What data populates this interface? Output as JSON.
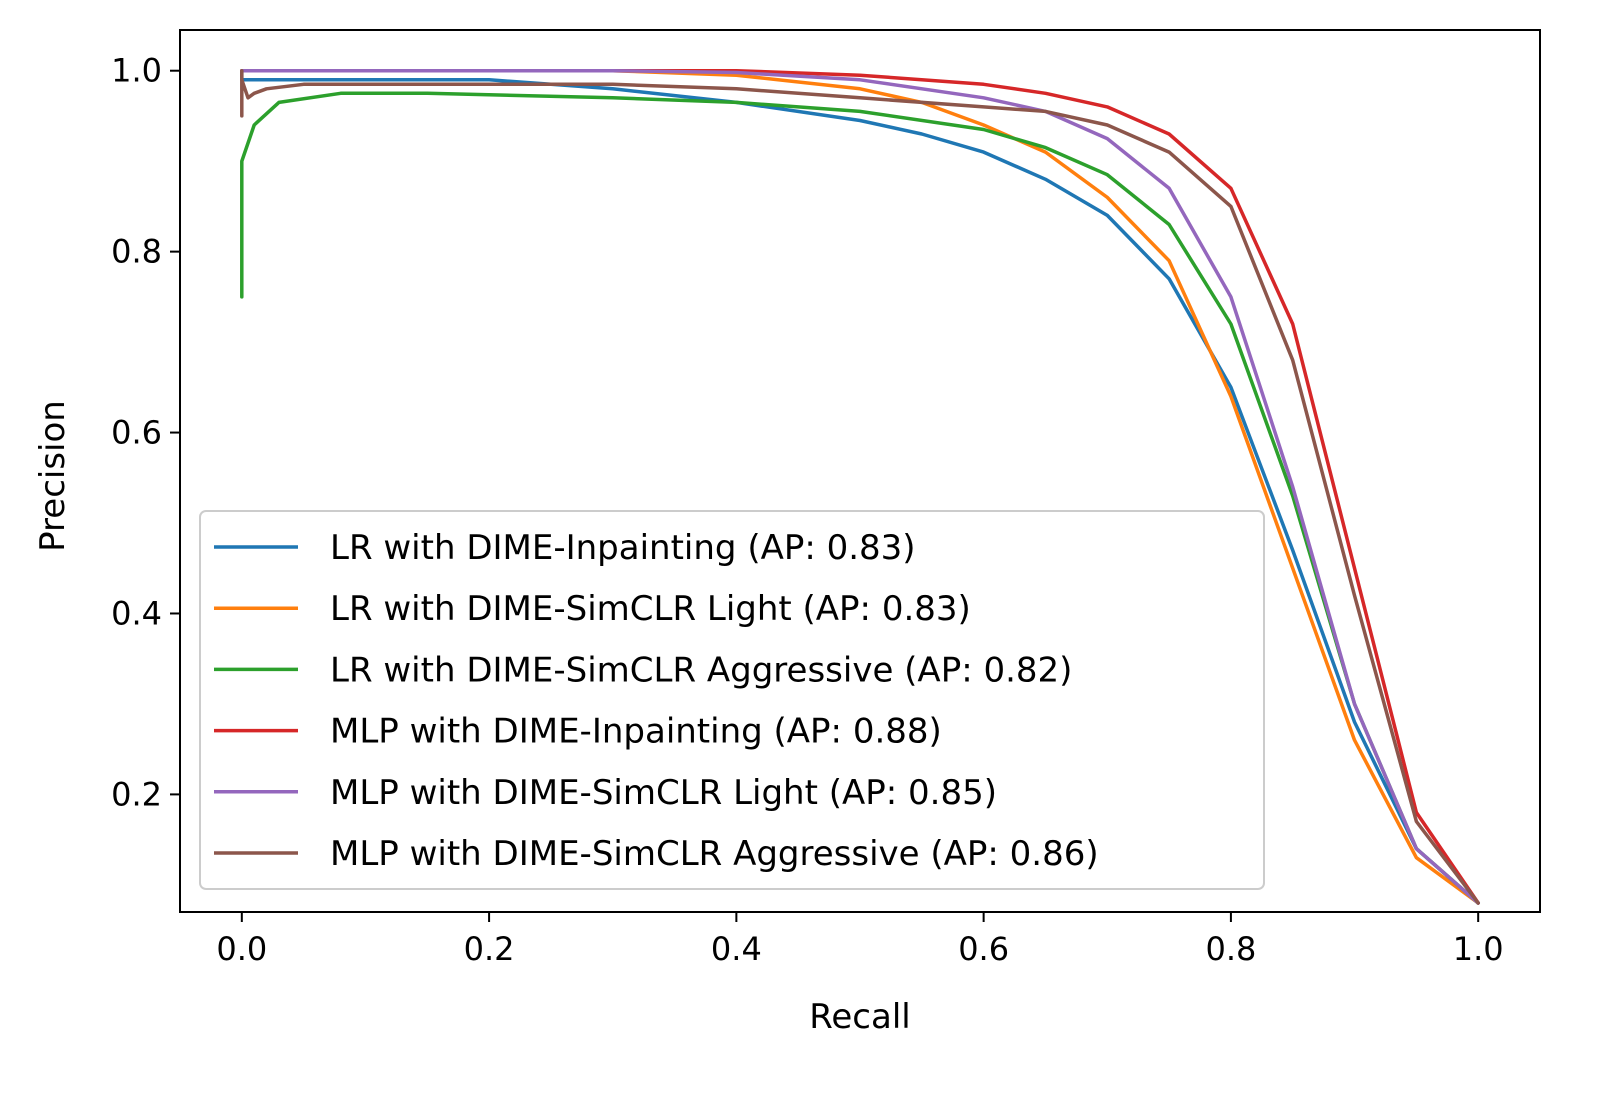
{
  "chart_data": {
    "type": "line",
    "title": "",
    "xlabel": "Recall",
    "ylabel": "Precision",
    "xlim": [
      -0.05,
      1.05
    ],
    "ylim": [
      0.07,
      1.045
    ],
    "xticks": [
      0.0,
      0.2,
      0.4,
      0.6,
      0.8,
      1.0
    ],
    "xtick_labels": [
      "0.0",
      "0.2",
      "0.4",
      "0.6",
      "0.8",
      "1.0"
    ],
    "yticks": [
      0.2,
      0.4,
      0.6,
      0.8,
      1.0
    ],
    "ytick_labels": [
      "0.2",
      "0.4",
      "0.6",
      "0.8",
      "1.0"
    ],
    "grid": false,
    "legend_position": "lower-left",
    "series": [
      {
        "name": "LR with DIME-Inpainting (AP: 0.83)",
        "color": "#1f77b4",
        "x": [
          0.0,
          0.0,
          0.02,
          0.1,
          0.2,
          0.3,
          0.4,
          0.5,
          0.55,
          0.6,
          0.65,
          0.7,
          0.75,
          0.8,
          0.85,
          0.9,
          0.95,
          1.0
        ],
        "y": [
          1.0,
          0.99,
          0.99,
          0.99,
          0.99,
          0.98,
          0.965,
          0.945,
          0.93,
          0.91,
          0.88,
          0.84,
          0.77,
          0.65,
          0.47,
          0.28,
          0.14,
          0.08
        ]
      },
      {
        "name": "LR with DIME-SimCLR Light (AP: 0.83)",
        "color": "#ff7f0e",
        "x": [
          0.0,
          0.0,
          0.1,
          0.2,
          0.3,
          0.4,
          0.5,
          0.55,
          0.6,
          0.65,
          0.7,
          0.75,
          0.8,
          0.85,
          0.9,
          0.95,
          1.0
        ],
        "y": [
          1.0,
          1.0,
          1.0,
          1.0,
          1.0,
          0.995,
          0.98,
          0.965,
          0.94,
          0.91,
          0.86,
          0.79,
          0.64,
          0.45,
          0.26,
          0.13,
          0.08
        ]
      },
      {
        "name": "LR with DIME-SimCLR Aggressive (AP: 0.82)",
        "color": "#2ca02c",
        "x": [
          0.0,
          0.0,
          0.0,
          0.01,
          0.03,
          0.08,
          0.15,
          0.3,
          0.4,
          0.5,
          0.6,
          0.65,
          0.7,
          0.75,
          0.8,
          0.85,
          0.9,
          0.95,
          1.0
        ],
        "y": [
          0.75,
          0.85,
          0.9,
          0.94,
          0.965,
          0.975,
          0.975,
          0.97,
          0.965,
          0.955,
          0.935,
          0.915,
          0.885,
          0.83,
          0.72,
          0.53,
          0.3,
          0.14,
          0.08
        ]
      },
      {
        "name": "MLP with DIME-Inpainting (AP: 0.88)",
        "color": "#d62728",
        "x": [
          0.0,
          0.0,
          0.1,
          0.2,
          0.3,
          0.4,
          0.5,
          0.6,
          0.65,
          0.7,
          0.75,
          0.8,
          0.85,
          0.9,
          0.95,
          1.0
        ],
        "y": [
          1.0,
          1.0,
          1.0,
          1.0,
          1.0,
          1.0,
          0.995,
          0.985,
          0.975,
          0.96,
          0.93,
          0.87,
          0.72,
          0.45,
          0.18,
          0.08
        ]
      },
      {
        "name": "MLP with DIME-SimCLR Light (AP: 0.85)",
        "color": "#9467bd",
        "x": [
          0.0,
          0.0,
          0.1,
          0.2,
          0.3,
          0.4,
          0.5,
          0.6,
          0.65,
          0.7,
          0.75,
          0.8,
          0.85,
          0.9,
          0.95,
          1.0
        ],
        "y": [
          1.0,
          1.0,
          1.0,
          1.0,
          1.0,
          0.998,
          0.99,
          0.97,
          0.955,
          0.925,
          0.87,
          0.75,
          0.54,
          0.3,
          0.14,
          0.08
        ]
      },
      {
        "name": "MLP with DIME-SimCLR Aggressive (AP: 0.86)",
        "color": "#8c564b",
        "x": [
          0.0,
          0.0,
          0.0,
          0.005,
          0.01,
          0.02,
          0.05,
          0.1,
          0.2,
          0.3,
          0.4,
          0.5,
          0.6,
          0.65,
          0.7,
          0.75,
          0.8,
          0.85,
          0.9,
          0.95,
          1.0
        ],
        "y": [
          1.0,
          0.95,
          0.99,
          0.97,
          0.975,
          0.98,
          0.985,
          0.985,
          0.985,
          0.985,
          0.98,
          0.97,
          0.96,
          0.955,
          0.94,
          0.91,
          0.85,
          0.68,
          0.42,
          0.17,
          0.08
        ]
      }
    ]
  }
}
